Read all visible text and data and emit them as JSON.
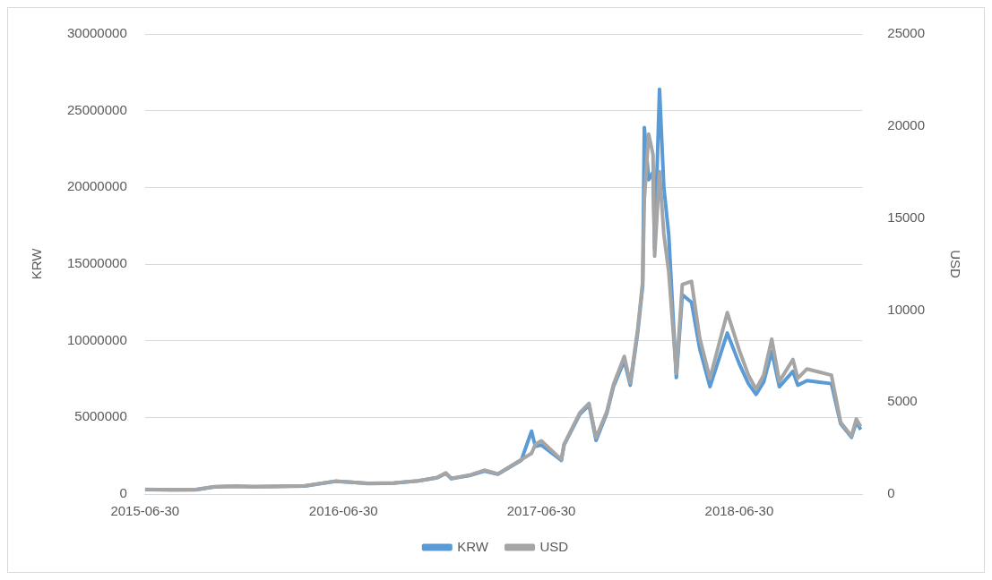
{
  "chart_data": {
    "type": "line",
    "ylabel": "KRW",
    "y2label": "USD",
    "xlim": [
      "2015-06-30",
      "2019-02-12"
    ],
    "xticks": [
      "2015-06-30",
      "2016-06-30",
      "2017-06-30",
      "2018-06-30"
    ],
    "ylim": [
      0,
      30000000
    ],
    "yticks": [
      0,
      5000000,
      10000000,
      15000000,
      20000000,
      25000000,
      30000000
    ],
    "y2lim": [
      0,
      25000
    ],
    "y2ticks": [
      0,
      5000,
      10000,
      15000,
      20000,
      25000
    ],
    "grid": "y",
    "legend": "bottom",
    "marker": "none",
    "line_style": "solid",
    "x": [
      "2015-06-30",
      "2015-08-20",
      "2015-10-01",
      "2015-11-05",
      "2015-12-15",
      "2016-01-15",
      "2016-03-01",
      "2016-04-20",
      "2016-06-15",
      "2016-07-15",
      "2016-08-15",
      "2016-10-01",
      "2016-11-15",
      "2016-12-20",
      "2017-01-05",
      "2017-01-15",
      "2017-02-20",
      "2017-03-17",
      "2017-04-11",
      "2017-05-24",
      "2017-06-12",
      "2017-06-19",
      "2017-06-30",
      "2017-08-06",
      "2017-08-11",
      "2017-09-09",
      "2017-09-26",
      "2017-10-09",
      "2017-10-29",
      "2017-11-10",
      "2017-11-30",
      "2017-12-11",
      "2017-12-25",
      "2018-01-03",
      "2018-01-06",
      "2018-01-14",
      "2018-01-22",
      "2018-01-25",
      "2018-02-03",
      "2018-02-11",
      "2018-02-20",
      "2018-03-06",
      "2018-03-17",
      "2018-04-03",
      "2018-04-18",
      "2018-05-07",
      "2018-06-08",
      "2018-06-30",
      "2018-07-17",
      "2018-07-31",
      "2018-08-14",
      "2018-08-29",
      "2018-09-12",
      "2018-10-07",
      "2018-10-16",
      "2018-11-02",
      "2018-11-25",
      "2018-12-17",
      "2019-01-03",
      "2019-01-23",
      "2019-02-01",
      "2019-02-09"
    ],
    "series": [
      {
        "name": "KRW",
        "color": "#5b9bd5",
        "values": [
          290000,
          270000,
          280000,
          470000,
          510000,
          480000,
          500000,
          530000,
          830000,
          770000,
          690000,
          720000,
          860000,
          1070000,
          1350000,
          1000000,
          1230000,
          1500000,
          1300000,
          2200000,
          4100000,
          3100000,
          3200000,
          2200000,
          3200000,
          5200000,
          5800000,
          3500000,
          5300000,
          7000000,
          8700000,
          7100000,
          10600000,
          13600000,
          23900000,
          20500000,
          21000000,
          16000000,
          26400000,
          20000000,
          16900000,
          7600000,
          13000000,
          12500000,
          9500000,
          7000000,
          10500000,
          8500000,
          7200000,
          6500000,
          7300000,
          9300000,
          7000000,
          8000000,
          7100000,
          7400000,
          7300000,
          7200000,
          4600000,
          3700000,
          4700000,
          4200000
        ]
      },
      {
        "name": "USD",
        "color": "#a5a5a5",
        "axis": "y2",
        "values": [
          250,
          230,
          240,
          400,
          430,
          400,
          420,
          450,
          700,
          650,
          580,
          610,
          720,
          900,
          1150,
          850,
          1050,
          1300,
          1100,
          1870,
          2210,
          2700,
          2890,
          1870,
          2720,
          4420,
          4930,
          3060,
          4500,
          5950,
          7480,
          6040,
          9010,
          11560,
          16000,
          19560,
          18450,
          12930,
          17520,
          14120,
          12080,
          6550,
          11390,
          11560,
          8500,
          6290,
          9860,
          7820,
          6460,
          5700,
          6460,
          8420,
          6120,
          7310,
          6290,
          6800,
          6630,
          6460,
          3910,
          3150,
          4080,
          3660
        ]
      }
    ]
  }
}
